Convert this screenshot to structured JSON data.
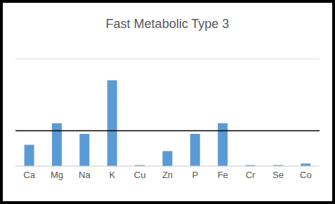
{
  "chart_data": {
    "type": "bar",
    "title": "Fast Metabolic Type 3",
    "categories": [
      "Ca",
      "Mg",
      "Na",
      "K",
      "Cu",
      "Zn",
      "P",
      "Fe",
      "Cr",
      "Se",
      "Co"
    ],
    "values": [
      1,
      2,
      1.5,
      4,
      0.05,
      0.7,
      1.5,
      2,
      0.05,
      0.05,
      0.12
    ],
    "color": "#5b9bd5",
    "ylim": [
      0,
      5
    ],
    "yticks": [
      0,
      1,
      2,
      3,
      4,
      5
    ],
    "grid": true,
    "tick_labels": "x",
    "reference_line": 1.65
  }
}
